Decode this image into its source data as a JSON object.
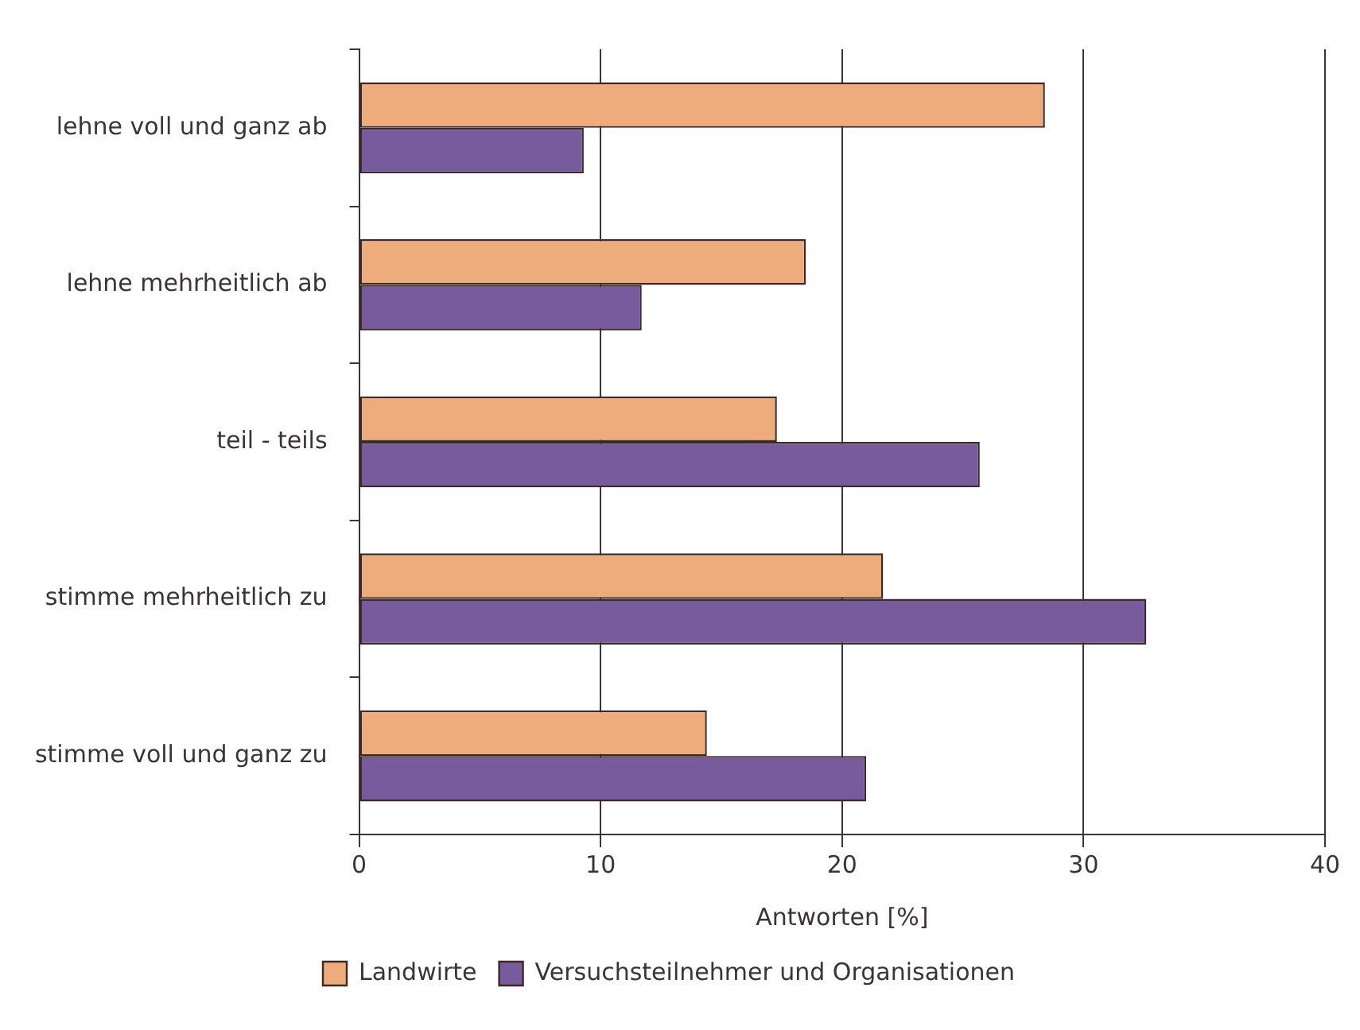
{
  "chart_data": {
    "type": "bar",
    "orientation": "horizontal",
    "xlabel": "Antworten [%]",
    "categories": [
      "lehne voll und ganz ab",
      "lehne mehrheitlich ab",
      "teil - teils",
      "stimme mehrheitlich zu",
      "stimme voll und ganz zu"
    ],
    "series": [
      {
        "name": "Landwirte",
        "color": "#eeac7c",
        "values": [
          28.4,
          18.5,
          17.3,
          21.7,
          14.4
        ]
      },
      {
        "name": "Versuchsteilnehmer und Organisationen",
        "color": "#775b9c",
        "values": [
          9.3,
          11.7,
          25.7,
          32.6,
          21.0
        ]
      }
    ],
    "xlim": [
      0,
      40
    ],
    "xticks": [
      0,
      10,
      20,
      30,
      40
    ],
    "grid": "x",
    "legend": "bottom"
  }
}
